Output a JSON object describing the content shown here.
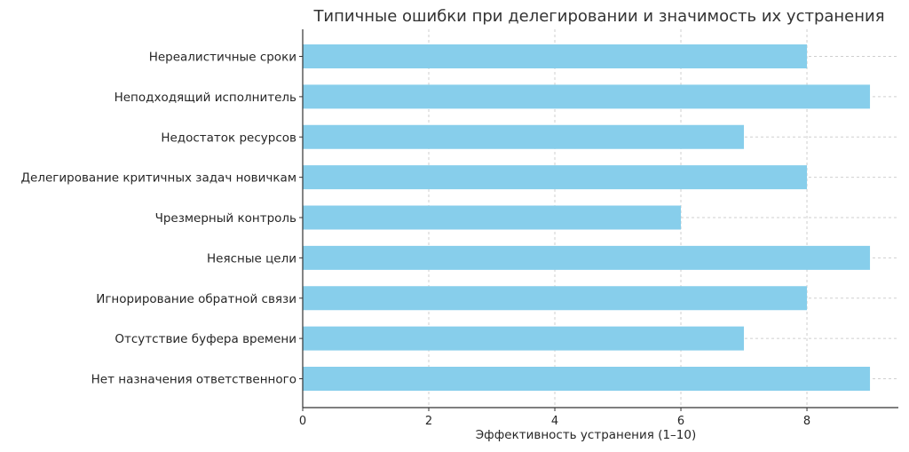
{
  "chart_data": {
    "type": "bar",
    "orientation": "horizontal",
    "title": "Типичные ошибки при делегировании и значимость их устранения",
    "xlabel": "Эффективность устранения (1–10)",
    "ylabel": "",
    "categories": [
      "Нереалистичные сроки",
      "Неподходящий исполнитель",
      "Недостаток ресурсов",
      "Делегирование критичных задач новичкам",
      "Чрезмерный контроль",
      "Неясные цели",
      "Игнорирование обратной связи",
      "Отсутствие буфера времени",
      "Нет назначения ответственного"
    ],
    "values": [
      8,
      9,
      7,
      8,
      6,
      9,
      8,
      7,
      9
    ],
    "xlim": [
      0,
      9.45
    ],
    "xticks": [
      0,
      2,
      4,
      6,
      8
    ],
    "grid": true,
    "bar_color": "#87ceeb"
  }
}
